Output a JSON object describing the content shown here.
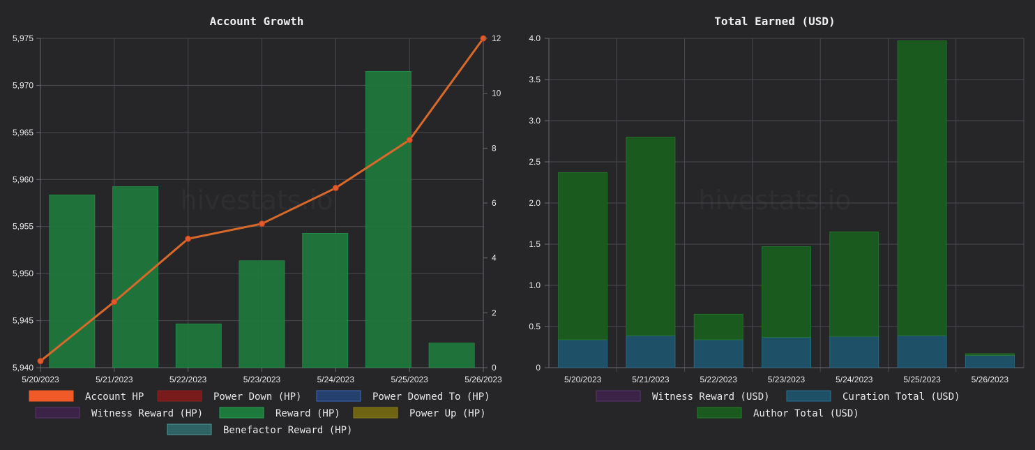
{
  "watermark": "hivestats.io",
  "chart_data": [
    {
      "type": "bar",
      "title": "Account Growth",
      "categories": [
        "5/20/2023",
        "5/21/2023",
        "5/22/2023",
        "5/23/2023",
        "5/24/2023",
        "5/25/2023",
        "5/26/2023"
      ],
      "y_left": {
        "ticks": [
          "5,940",
          "5,945",
          "5,950",
          "5,955",
          "5,960",
          "5,965",
          "5,970",
          "5,975"
        ],
        "ylim": [
          5940,
          5975
        ]
      },
      "y_right": {
        "ticks": [
          "0",
          "2",
          "4",
          "6",
          "8",
          "10",
          "12"
        ],
        "ylim": [
          0,
          12
        ]
      },
      "grid": true,
      "line_series": {
        "name": "Account HP",
        "axis": "left",
        "color": "#d9692b",
        "values": [
          5940.7,
          5947.0,
          5953.7,
          5955.3,
          5959.1,
          5964.2,
          5975.0
        ]
      },
      "bar_series": {
        "name": "Reward (HP)",
        "axis": "right",
        "color": "#1e7a3c",
        "values": [
          6.3,
          6.6,
          1.6,
          3.9,
          4.9,
          10.8,
          0.9
        ]
      },
      "legend": [
        {
          "label": "Account HP",
          "color": "#f05a28",
          "border": "#f05a28"
        },
        {
          "label": "Power Down (HP)",
          "color": "#7a1b1b",
          "border": "#8a2020"
        },
        {
          "label": "Power Downed To (HP)",
          "color": "#24406e",
          "border": "#3d6ab8"
        },
        {
          "label": "Witness Reward (HP)",
          "color": "#3b2347",
          "border": "#5a3470"
        },
        {
          "label": "Reward (HP)",
          "color": "#1e7a3c",
          "border": "#27a04e"
        },
        {
          "label": "Power Up (HP)",
          "color": "#6e6414",
          "border": "#8a7d1a"
        },
        {
          "label": "Benefactor Reward (HP)",
          "color": "#2f6262",
          "border": "#4a9a9a"
        }
      ],
      "legend_placement": "bottom"
    },
    {
      "type": "bar",
      "title": "Total Earned (USD)",
      "categories": [
        "5/20/2023",
        "5/21/2023",
        "5/22/2023",
        "5/23/2023",
        "5/24/2023",
        "5/25/2023",
        "5/26/2023"
      ],
      "y_left": {
        "ticks": [
          "0",
          "0.5",
          "1.0",
          "1.5",
          "2.0",
          "2.5",
          "3.0",
          "3.5",
          "4.0"
        ],
        "ylim": [
          0,
          4
        ]
      },
      "grid": true,
      "stacked": true,
      "series": [
        {
          "name": "Curation Total (USD)",
          "color": "#1e5068",
          "border": "#2b6f8f",
          "values": [
            0.34,
            0.39,
            0.34,
            0.37,
            0.38,
            0.39,
            0.15
          ]
        },
        {
          "name": "Author Total (USD)",
          "color": "#1b5a1f",
          "border": "#247a2a",
          "values": [
            2.03,
            2.41,
            0.31,
            1.1,
            1.27,
            3.58,
            0.02
          ]
        }
      ],
      "legend": [
        {
          "label": "Witness Reward (USD)",
          "color": "#3b2347",
          "border": "#5a3470"
        },
        {
          "label": "Curation Total (USD)",
          "color": "#1e5068",
          "border": "#2b6f8f"
        },
        {
          "label": "Author Total (USD)",
          "color": "#1b5a1f",
          "border": "#247a2a"
        }
      ],
      "legend_placement": "bottom"
    }
  ]
}
